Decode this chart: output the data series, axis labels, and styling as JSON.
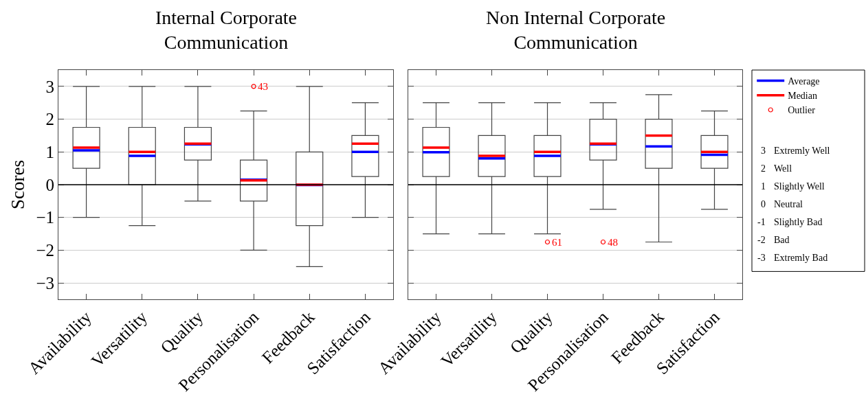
{
  "chart_data": [
    {
      "type": "box",
      "title": "Internal Corporate Communication",
      "ylabel": "Scores",
      "categories": [
        "Availability",
        "Versatility",
        "Quality",
        "Personalisation",
        "Feedback",
        "Satisfaction"
      ],
      "boxes": [
        {
          "low": -1,
          "q1": 0.5,
          "median": 1.13,
          "q3": 1.75,
          "high": 3,
          "mean": 1.05
        },
        {
          "low": -1.25,
          "q1": 0,
          "median": 1.0,
          "q3": 1.75,
          "high": 3,
          "mean": 0.88
        },
        {
          "low": -0.5,
          "q1": 0.75,
          "median": 1.25,
          "q3": 1.75,
          "high": 3,
          "mean": 1.23
        },
        {
          "low": -2,
          "q1": -0.5,
          "median": 0.13,
          "q3": 0.75,
          "high": 2.25,
          "mean": 0.15,
          "outliers": [
            3
          ]
        },
        {
          "low": -2.5,
          "q1": -1.25,
          "median": 0,
          "q3": 1,
          "high": 3,
          "mean": -0.01
        },
        {
          "low": -1,
          "q1": 0.25,
          "median": 1.25,
          "q3": 1.5,
          "high": 2.5,
          "mean": 1.0
        }
      ],
      "annotations": [
        "43"
      ],
      "ylim": [
        -3.5,
        3.5
      ],
      "yticks": [
        -3,
        -2,
        -1,
        0,
        1,
        2,
        3
      ],
      "grid": "y",
      "ref_lines": [
        {
          "axis": "y",
          "value": 0,
          "color": "#000000"
        }
      ]
    },
    {
      "type": "box",
      "title": "Non Internal Corporate Communication",
      "categories": [
        "Availability",
        "Versatility",
        "Quality",
        "Personalisation",
        "Feedback",
        "Satisfaction"
      ],
      "boxes": [
        {
          "low": -1.5,
          "q1": 0.25,
          "median": 1.13,
          "q3": 1.75,
          "high": 2.5,
          "mean": 0.99
        },
        {
          "low": -1.5,
          "q1": 0.25,
          "median": 0.88,
          "q3": 1.5,
          "high": 2.5,
          "mean": 0.8
        },
        {
          "low": -1.5,
          "q1": 0.25,
          "median": 1.0,
          "q3": 1.5,
          "high": 2.5,
          "mean": 0.88,
          "outliers": [
            -1.75
          ]
        },
        {
          "low": -0.75,
          "q1": 0.75,
          "median": 1.25,
          "q3": 2,
          "high": 2.5,
          "mean": 1.23,
          "outliers": [
            -1.75
          ]
        },
        {
          "low": -1.75,
          "q1": 0.5,
          "median": 1.5,
          "q3": 2,
          "high": 2.75,
          "mean": 1.17
        },
        {
          "low": -0.75,
          "q1": 0.5,
          "median": 1.0,
          "q3": 1.5,
          "high": 2.25,
          "mean": 0.91
        }
      ],
      "annotations": [
        "61",
        "48",
        "Average",
        "Median",
        "Outlier",
        "3 Extremly Well",
        "2 Well",
        "1 Slightly Well",
        "0 Neutral",
        "-1 Slightly Bad",
        "-2 Bad",
        "-3 Extremly Bad"
      ],
      "ylim": [
        -3.5,
        3.5
      ],
      "yticks": [
        -3,
        -2,
        -1,
        0,
        1,
        2,
        3
      ],
      "grid": "y",
      "tick_labels": "x",
      "ref_lines": [
        {
          "axis": "y",
          "value": 0,
          "color": "#000000"
        }
      ]
    }
  ]
}
